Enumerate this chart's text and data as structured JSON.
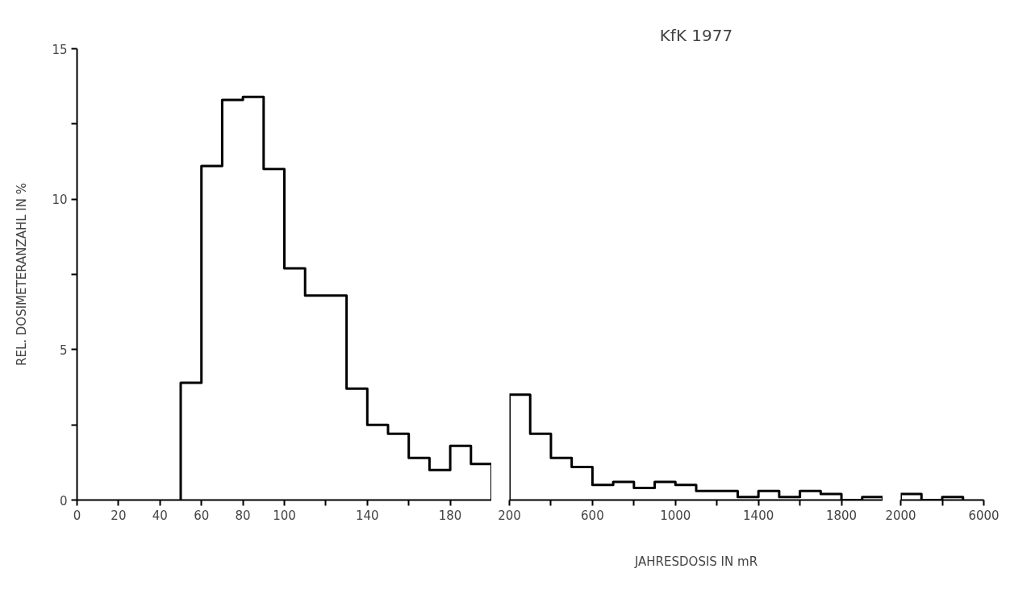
{
  "chart_data": [
    {
      "type": "histogram",
      "ylabel": "REL. DOSIMETERANZAHL IN %",
      "bins": [
        50,
        60,
        70,
        80,
        90,
        100,
        110,
        120,
        130,
        140,
        150,
        160,
        170,
        180,
        190,
        200
      ],
      "values": [
        3.9,
        11.1,
        13.3,
        13.4,
        11.0,
        7.7,
        6.8,
        6.8,
        3.7,
        2.5,
        2.2,
        1.4,
        1.0,
        1.8,
        1.2
      ],
      "color": "#000000",
      "xlim": [
        0,
        200
      ],
      "xticks": [
        0,
        20,
        40,
        60,
        80,
        100,
        {
          "value": 120,
          "label": null
        },
        140,
        {
          "value": 160,
          "label": null
        },
        180
      ],
      "ylim": [
        0,
        15
      ],
      "yticks": [
        0,
        {
          "value": 2.5,
          "label": null
        },
        5,
        {
          "value": 7.5,
          "label": null
        },
        10,
        {
          "value": 12.5,
          "label": null
        },
        15
      ],
      "grid": false
    },
    {
      "type": "histogram",
      "title": "KfK 1977",
      "xlabel": "JAHRESDOSIS IN mR",
      "bins": [
        200,
        300,
        400,
        500,
        600,
        700,
        800,
        900,
        1000,
        1100,
        1200,
        1300,
        1400,
        1500,
        1600,
        1700,
        1800,
        1900,
        2000
      ],
      "values": [
        3.5,
        2.2,
        1.4,
        1.1,
        0.5,
        0.6,
        0.4,
        0.6,
        0.5,
        0.3,
        0.3,
        0.1,
        0.3,
        0.1,
        0.3,
        0.2,
        0,
        0.1
      ],
      "color": "#000000",
      "xlim": [
        200,
        2000
      ],
      "xticks": [
        200,
        {
          "value": 400,
          "label": null
        },
        600,
        {
          "value": 800,
          "label": null
        },
        1000,
        {
          "value": 1200,
          "label": null
        },
        1400,
        {
          "value": 1600,
          "label": null
        },
        1800
      ],
      "ylim": [
        0,
        15
      ],
      "tick_labels": "x",
      "grid": false
    },
    {
      "type": "histogram",
      "bins": [
        2000,
        3000,
        4000,
        5000
      ],
      "values": [
        0.2,
        0,
        0.1
      ],
      "color": "#000000",
      "xlim": [
        2000,
        6000
      ],
      "xticks": [
        2000,
        {
          "value": 4000,
          "label": null
        },
        6000
      ],
      "ylim": [
        0,
        15
      ],
      "tick_labels": "x",
      "grid": false
    }
  ]
}
